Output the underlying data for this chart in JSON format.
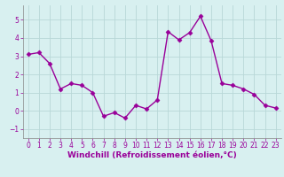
{
  "x": [
    0,
    1,
    2,
    3,
    4,
    5,
    6,
    7,
    8,
    9,
    10,
    11,
    12,
    13,
    14,
    15,
    16,
    17,
    18,
    19,
    20,
    21,
    22,
    23
  ],
  "y": [
    3.1,
    3.2,
    2.6,
    1.2,
    1.5,
    1.4,
    1.0,
    -0.3,
    -0.1,
    -0.4,
    0.3,
    0.1,
    0.6,
    4.35,
    3.9,
    4.3,
    5.2,
    3.85,
    1.5,
    1.4,
    1.2,
    0.9,
    0.3,
    0.15
  ],
  "line_color": "#990099",
  "marker": "D",
  "markersize": 2.5,
  "linewidth": 1.0,
  "xlabel": "Windchill (Refroidissement éolien,°C)",
  "xlabel_fontsize": 6.5,
  "background_color": "#d8f0f0",
  "grid_color": "#b8d8d8",
  "tick_fontsize": 5.5,
  "ylim": [
    -1.5,
    5.8
  ],
  "xlim": [
    -0.5,
    23.5
  ],
  "yticks": [
    -1,
    0,
    1,
    2,
    3,
    4,
    5
  ],
  "xticks": [
    0,
    1,
    2,
    3,
    4,
    5,
    6,
    7,
    8,
    9,
    10,
    11,
    12,
    13,
    14,
    15,
    16,
    17,
    18,
    19,
    20,
    21,
    22,
    23
  ]
}
